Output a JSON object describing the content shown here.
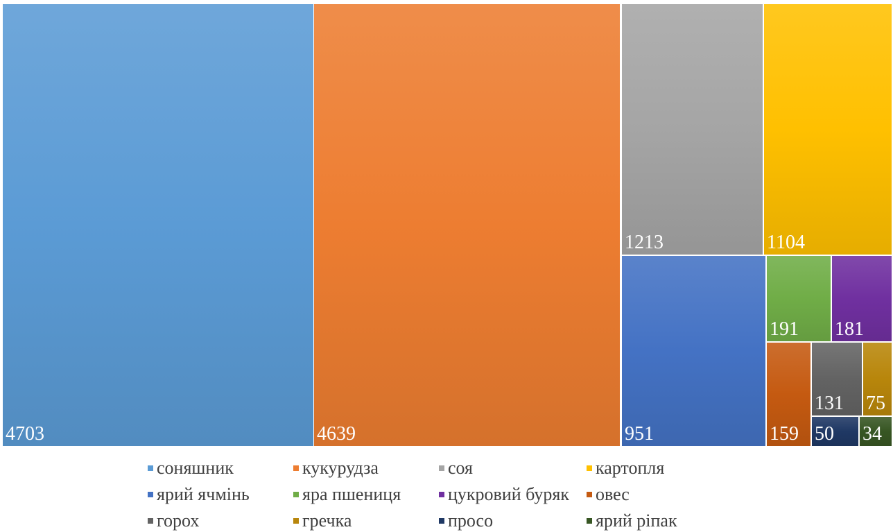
{
  "chart_data": {
    "type": "treemap",
    "title": "",
    "legend_position": "bottom",
    "data_labels": true,
    "items": [
      {
        "name": "соняшник",
        "value": 4703,
        "color": "#5B9BD5"
      },
      {
        "name": "кукурудза",
        "value": 4639,
        "color": "#ED7D31"
      },
      {
        "name": "соя",
        "value": 1213,
        "color": "#A5A5A5"
      },
      {
        "name": "картопля",
        "value": 1104,
        "color": "#FFC000"
      },
      {
        "name": "ярий ячмінь",
        "value": 951,
        "color": "#4472C4"
      },
      {
        "name": "яра пшениця",
        "value": 191,
        "color": "#70AD47"
      },
      {
        "name": "цукровий буряк",
        "value": 181,
        "color": "#7030A0"
      },
      {
        "name": "овес",
        "value": 159,
        "color": "#C55A11"
      },
      {
        "name": "горох",
        "value": 131,
        "color": "#636363"
      },
      {
        "name": "гречка",
        "value": 75,
        "color": "#B8860B"
      },
      {
        "name": "просо",
        "value": 50,
        "color": "#1F3864"
      },
      {
        "name": "ярий ріпак",
        "value": 34,
        "color": "#375623"
      }
    ]
  }
}
